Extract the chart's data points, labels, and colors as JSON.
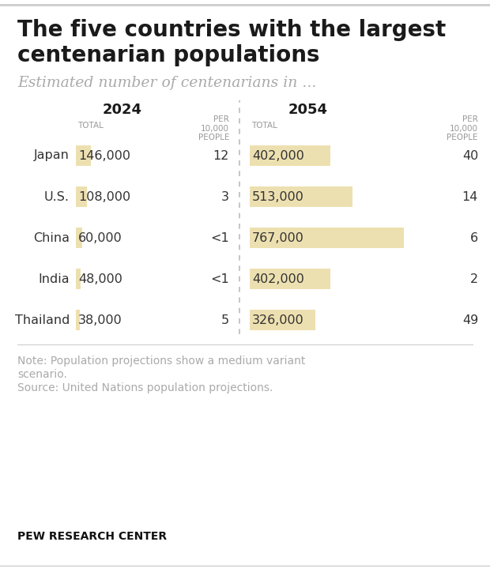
{
  "title": "The five countries with the largest\ncentenarian populations",
  "subtitle": "Estimated number of centenarians in ...",
  "countries": [
    "Japan",
    "U.S.",
    "China",
    "India",
    "Thailand"
  ],
  "total_2024": [
    "146,000",
    "108,000",
    "60,000",
    "48,000",
    "38,000"
  ],
  "per_2024": [
    "12",
    "3",
    "<1",
    "<1",
    "5"
  ],
  "total_2054": [
    "402,000",
    "513,000",
    "767,000",
    "402,000",
    "326,000"
  ],
  "per_2054": [
    "40",
    "14",
    "6",
    "2",
    "49"
  ],
  "bar_2024_values": [
    146000,
    108000,
    60000,
    48000,
    38000
  ],
  "bar_2054_values": [
    402000,
    513000,
    767000,
    402000,
    326000
  ],
  "bar_max": 767000,
  "bar_color": "#EDE0B0",
  "note_line1": "Note: Population projections show a medium variant",
  "note_line2": "scenario.",
  "note_line3": "Source: United Nations population projections.",
  "footer": "PEW RESEARCH CENTER",
  "bg_color": "#FFFFFF",
  "title_color": "#1a1a1a",
  "subtitle_color": "#AAAAAA",
  "text_color": "#333333",
  "header_color": "#999999",
  "note_color": "#AAAAAA",
  "footer_color": "#111111",
  "divider_color": "#BBBBBB",
  "border_color": "#CCCCCC"
}
